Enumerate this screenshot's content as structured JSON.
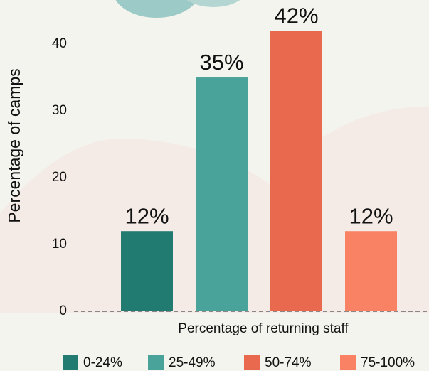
{
  "chart_data": {
    "type": "bar",
    "xlabel": "Percentage of returning staff",
    "ylabel": "Percentage of camps",
    "categories": [
      "0-24%",
      "25-49%",
      "50-74%",
      "75-100%"
    ],
    "values": [
      12,
      35,
      42,
      12
    ],
    "value_labels": [
      "12%",
      "35%",
      "42%",
      "12%"
    ],
    "colors": [
      "#217b71",
      "#4aa39a",
      "#e8694e",
      "#f98264"
    ],
    "ylim": [
      0,
      46.6
    ],
    "yticks": [
      0,
      10,
      20,
      30,
      40
    ],
    "legend": "bottom"
  }
}
